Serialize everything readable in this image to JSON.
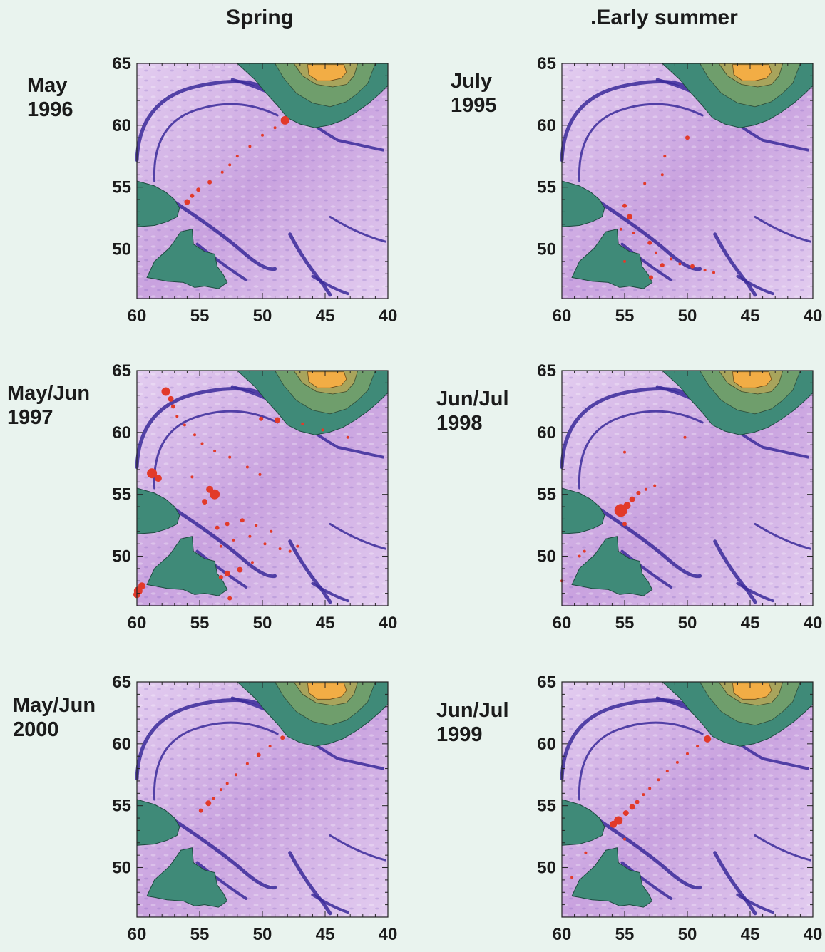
{
  "columns": {
    "left": "Spring",
    "right": ".Early summer"
  },
  "axes": {
    "lat_ticks": [
      "65",
      "60",
      "55",
      "50"
    ],
    "lon_ticks": [
      "60",
      "55",
      "50",
      "45",
      "40"
    ],
    "lat_range": [
      46,
      65
    ],
    "lon_range": [
      60,
      40
    ]
  },
  "colors": {
    "ocean": "#c9a2df",
    "ocean_light": "#e3cdf0",
    "ridge": "#3a2a9a",
    "land": "#3f8a78",
    "ice_high": "#f2ad45",
    "observations": "#e23a2a"
  },
  "panels": [
    {
      "id": "may-1996",
      "label_line1": "May",
      "label_line2": "1996",
      "obs": [
        [
          48.2,
          60.4,
          6
        ],
        [
          49,
          59.8,
          2
        ],
        [
          50,
          59.2,
          2
        ],
        [
          51,
          58.3,
          2
        ],
        [
          52,
          57.5,
          2
        ],
        [
          52.6,
          56.8,
          2
        ],
        [
          53.2,
          56.2,
          2
        ],
        [
          54.2,
          55.4,
          3
        ],
        [
          55.1,
          54.8,
          3
        ],
        [
          55.6,
          54.3,
          3
        ],
        [
          56,
          53.8,
          4
        ]
      ]
    },
    {
      "id": "may-jun-1997",
      "label_line1": "May/Jun",
      "label_line2": "1997",
      "obs": [
        [
          57.7,
          63.3,
          6
        ],
        [
          57.3,
          62.7,
          4
        ],
        [
          57.1,
          62.1,
          3
        ],
        [
          56.8,
          61.3,
          2
        ],
        [
          56.2,
          60.6,
          2
        ],
        [
          55.4,
          59.8,
          2
        ],
        [
          54.8,
          59.1,
          2
        ],
        [
          53.8,
          58.5,
          2
        ],
        [
          52.6,
          58,
          2
        ],
        [
          51.2,
          57.2,
          2
        ],
        [
          50.2,
          56.6,
          2
        ],
        [
          48.8,
          61,
          4
        ],
        [
          50.1,
          61.1,
          3
        ],
        [
          46.8,
          60.7,
          2
        ],
        [
          45.2,
          60.2,
          2
        ],
        [
          43.2,
          59.6,
          2
        ],
        [
          58.8,
          56.7,
          7
        ],
        [
          58.3,
          56.3,
          5
        ],
        [
          55.6,
          56.4,
          2
        ],
        [
          54.2,
          55.4,
          5
        ],
        [
          53.8,
          55,
          7
        ],
        [
          54.6,
          54.4,
          4
        ],
        [
          53.6,
          52.3,
          3
        ],
        [
          52.8,
          52.6,
          3
        ],
        [
          51.6,
          52.9,
          3
        ],
        [
          50.5,
          52.5,
          2
        ],
        [
          49.3,
          52,
          2
        ],
        [
          53.3,
          50.8,
          2
        ],
        [
          52.3,
          51.3,
          2
        ],
        [
          51,
          51.6,
          2
        ],
        [
          49.8,
          51,
          2
        ],
        [
          48.6,
          50.6,
          2
        ],
        [
          47.8,
          50.4,
          2
        ],
        [
          47.2,
          50.8,
          2
        ],
        [
          50.8,
          49.5,
          2
        ],
        [
          51.8,
          48.9,
          4
        ],
        [
          52.8,
          48.6,
          4
        ],
        [
          53.3,
          48.3,
          3
        ],
        [
          59.6,
          47.6,
          5
        ],
        [
          59.9,
          47.2,
          6
        ],
        [
          60,
          46.9,
          5
        ],
        [
          52.6,
          46.6,
          3
        ]
      ]
    },
    {
      "id": "may-jun-2000",
      "label_line1": "May/Jun",
      "label_line2": "2000",
      "obs": [
        [
          48.4,
          60.5,
          3
        ],
        [
          49.4,
          59.8,
          2
        ],
        [
          50.3,
          59.1,
          3
        ],
        [
          51.2,
          58.4,
          2
        ],
        [
          52.1,
          57.5,
          2
        ],
        [
          52.8,
          56.8,
          2
        ],
        [
          53.3,
          56.3,
          2
        ],
        [
          53.9,
          55.6,
          2
        ],
        [
          54.3,
          55.2,
          4
        ],
        [
          54.9,
          54.6,
          3
        ]
      ]
    },
    {
      "id": "july-1995",
      "label_line1": "July",
      "label_line2": "1995",
      "obs": [
        [
          50,
          59,
          3
        ],
        [
          51.8,
          57.5,
          2
        ],
        [
          52,
          56,
          2
        ],
        [
          53.4,
          55.3,
          2
        ],
        [
          55,
          53.5,
          3
        ],
        [
          54.6,
          52.6,
          4
        ],
        [
          55.3,
          51.6,
          2
        ],
        [
          54.3,
          51.3,
          2
        ],
        [
          53,
          50.5,
          3
        ],
        [
          52.5,
          49.7,
          2
        ],
        [
          51.3,
          49.2,
          2
        ],
        [
          52,
          48.7,
          3
        ],
        [
          50.6,
          48.8,
          2
        ],
        [
          49.6,
          48.6,
          3
        ],
        [
          48.6,
          48.3,
          2
        ],
        [
          47.9,
          48.1,
          2
        ],
        [
          52.9,
          47.7,
          3
        ],
        [
          55,
          49,
          2
        ]
      ]
    },
    {
      "id": "jun-jul-1998",
      "label_line1": "Jun/Jul",
      "label_line2": "1998",
      "obs": [
        [
          55.3,
          53.7,
          9
        ],
        [
          54.8,
          54.1,
          5
        ],
        [
          54.4,
          54.6,
          4
        ],
        [
          53.9,
          55.1,
          3
        ],
        [
          53.3,
          55.4,
          2
        ],
        [
          52.6,
          55.7,
          2
        ],
        [
          55,
          52.6,
          3
        ],
        [
          58.6,
          50,
          2
        ],
        [
          55,
          58.4,
          2
        ],
        [
          50.2,
          59.6,
          2
        ],
        [
          58.2,
          50.4,
          2
        ],
        [
          60,
          48,
          2
        ]
      ]
    },
    {
      "id": "jun-jul-1999",
      "label_line1": "Jun/Jul",
      "label_line2": "1999",
      "obs": [
        [
          48.4,
          60.4,
          5
        ],
        [
          49.2,
          59.8,
          2
        ],
        [
          50,
          59.2,
          2
        ],
        [
          50.8,
          58.5,
          2
        ],
        [
          51.6,
          57.8,
          2
        ],
        [
          52.3,
          57.1,
          2
        ],
        [
          53,
          56.4,
          2
        ],
        [
          53.5,
          55.9,
          2
        ],
        [
          54,
          55.3,
          3
        ],
        [
          54.4,
          54.9,
          4
        ],
        [
          54.9,
          54.4,
          4
        ],
        [
          55.5,
          53.8,
          6
        ],
        [
          55.9,
          53.5,
          5
        ],
        [
          58.1,
          51.2,
          2
        ],
        [
          55,
          52.3,
          2
        ],
        [
          59.2,
          49.2,
          2
        ]
      ]
    }
  ]
}
